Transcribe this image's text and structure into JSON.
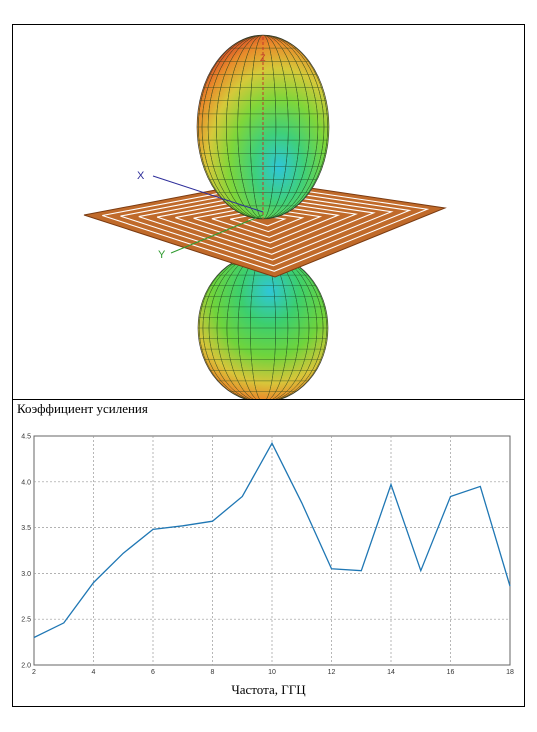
{
  "figure": {
    "axis_x_label": "X",
    "axis_y_label": "Y",
    "axis_z_label": "Z"
  },
  "chart_data": {
    "type": "line",
    "title": "Коэффициент усиления",
    "xlabel": "Частота, ГГЦ",
    "ylabel": "",
    "xlim": [
      2,
      18
    ],
    "ylim": [
      2.0,
      4.5
    ],
    "xticks": [
      2,
      4,
      6,
      8,
      10,
      12,
      14,
      16,
      18
    ],
    "yticks": [
      2.0,
      2.5,
      3.0,
      3.5,
      4.0,
      4.5
    ],
    "grid": true,
    "series": [
      {
        "color": "#1f77b4",
        "x": [
          2,
          3,
          4,
          5,
          6,
          7,
          8,
          9,
          10,
          11,
          12,
          13,
          14,
          15,
          16,
          17,
          18
        ],
        "y": [
          2.3,
          2.46,
          2.9,
          3.22,
          3.48,
          3.52,
          3.57,
          3.84,
          4.42,
          3.77,
          3.05,
          3.03,
          3.97,
          3.03,
          3.84,
          3.95,
          2.86
        ]
      }
    ]
  }
}
